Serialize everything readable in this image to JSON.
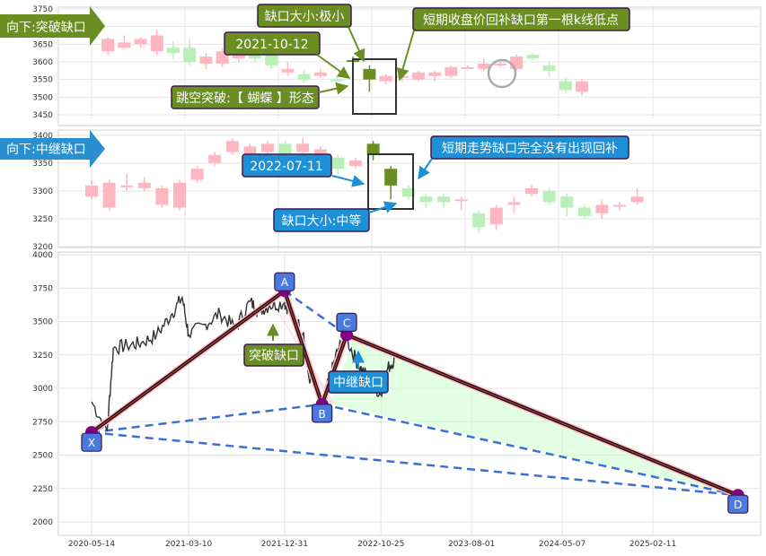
{
  "panel1": {
    "tag": "向下:突破缺口",
    "yticks": [
      "3750",
      "3700",
      "3650",
      "3600",
      "3550",
      "3500",
      "3450"
    ],
    "notes": {
      "gap_size": "缺口大小:极小",
      "date": "2021-10-12",
      "pattern": "跳空突破:【 蝴蝶 】形态",
      "fill_rule": "短期收盘价回补缺口第一根k线低点"
    }
  },
  "panel2": {
    "tag": "向下:中继缺口",
    "yticks": [
      "3400",
      "3350",
      "3300",
      "3250",
      "3200"
    ],
    "notes": {
      "date": "2022-07-11",
      "no_fill": "短期走势缺口完全没有出现回补",
      "gap_size": "缺口大小:中等"
    }
  },
  "panel3": {
    "yticks": [
      "4000",
      "3750",
      "3500",
      "3250",
      "3000",
      "2750",
      "2500",
      "2250",
      "2000"
    ],
    "xticks": [
      "2020-05-14",
      "2021-03-10",
      "2021-12-31",
      "2022-10-25",
      "2023-08-01",
      "2024-05-07",
      "2025-02-11"
    ],
    "points": {
      "X": "X",
      "A": "A",
      "B": "B",
      "C": "C",
      "D": "D"
    },
    "gap1_label": "突破缺口",
    "gap2_label": "中继缺口"
  },
  "colors": {
    "up": "#ffb6c1",
    "down": "#b8f0b8",
    "highlight_candle": "#6b8e23",
    "green_box": "#6b8e23",
    "blue_box": "#1e90d8",
    "price_line": "#333333",
    "dashed": "#3b6fd8",
    "pattern_fill": "#ccffcc"
  },
  "chart_data": [
    {
      "type": "candlestick",
      "title": "向下:突破缺口",
      "ylim": [
        3450,
        3750
      ],
      "grid": true,
      "gap": {
        "date": "2021-10-12",
        "size": "极小",
        "pattern": "蝴蝶"
      },
      "candles": [
        {
          "o": 3690,
          "c": 3670,
          "h": 3700,
          "l": 3660
        },
        {
          "o": 3630,
          "c": 3665,
          "h": 3670,
          "l": 3620
        },
        {
          "o": 3640,
          "c": 3655,
          "h": 3675,
          "l": 3635
        },
        {
          "o": 3650,
          "c": 3665,
          "h": 3670,
          "l": 3640
        },
        {
          "o": 3630,
          "c": 3675,
          "h": 3690,
          "l": 3620
        },
        {
          "o": 3640,
          "c": 3625,
          "h": 3660,
          "l": 3610
        },
        {
          "o": 3640,
          "c": 3600,
          "h": 3665,
          "l": 3590
        },
        {
          "o": 3595,
          "c": 3615,
          "h": 3625,
          "l": 3580
        },
        {
          "o": 3595,
          "c": 3630,
          "h": 3640,
          "l": 3585
        },
        {
          "o": 3610,
          "c": 3640,
          "h": 3650,
          "l": 3600
        },
        {
          "o": 3645,
          "c": 3610,
          "h": 3660,
          "l": 3600
        },
        {
          "o": 3620,
          "c": 3590,
          "h": 3630,
          "l": 3580
        },
        {
          "o": 3570,
          "c": 3580,
          "h": 3600,
          "l": 3560
        },
        {
          "o": 3565,
          "c": 3550,
          "h": 3575,
          "l": 3540
        },
        {
          "o": 3560,
          "c": 3570,
          "h": 3580,
          "l": 3555
        },
        {
          "o": 3550,
          "c": 3545,
          "h": 3560,
          "l": 3535
        },
        {
          "o": 3600,
          "c": 3605,
          "h": 3615,
          "l": 3590,
          "hl": true
        },
        {
          "o": 3580,
          "c": 3550,
          "h": 3590,
          "l": 3515,
          "hl": true
        },
        {
          "o": 3545,
          "c": 3560,
          "h": 3565,
          "l": 3535
        },
        {
          "o": 3555,
          "c": 3560,
          "h": 3565,
          "l": 3545
        },
        {
          "o": 3550,
          "c": 3570,
          "h": 3575,
          "l": 3545
        },
        {
          "o": 3560,
          "c": 3570,
          "h": 3575,
          "l": 3545
        },
        {
          "o": 3560,
          "c": 3585,
          "h": 3590,
          "l": 3555
        },
        {
          "o": 3585,
          "c": 3585,
          "h": 3590,
          "l": 3580
        },
        {
          "o": 3580,
          "c": 3595,
          "h": 3610,
          "l": 3575
        },
        {
          "o": 3590,
          "c": 3595,
          "h": 3600,
          "l": 3585
        },
        {
          "o": 3580,
          "c": 3615,
          "h": 3620,
          "l": 3575
        },
        {
          "o": 3620,
          "c": 3610,
          "h": 3625,
          "l": 3605
        },
        {
          "o": 3590,
          "c": 3575,
          "h": 3600,
          "l": 3560
        },
        {
          "o": 3545,
          "c": 3520,
          "h": 3555,
          "l": 3510
        },
        {
          "o": 3515,
          "c": 3545,
          "h": 3550,
          "l": 3505
        }
      ]
    },
    {
      "type": "candlestick",
      "title": "向下:中继缺口",
      "ylim": [
        3200,
        3400
      ],
      "grid": true,
      "gap": {
        "date": "2022-07-11",
        "size": "中等"
      },
      "candles": [
        {
          "o": 3290,
          "c": 3310,
          "h": 3320,
          "l": 3285
        },
        {
          "o": 3270,
          "c": 3315,
          "h": 3320,
          "l": 3265
        },
        {
          "o": 3310,
          "c": 3310,
          "h": 3330,
          "l": 3300
        },
        {
          "o": 3305,
          "c": 3315,
          "h": 3325,
          "l": 3300
        },
        {
          "o": 3275,
          "c": 3305,
          "h": 3310,
          "l": 3270
        },
        {
          "o": 3270,
          "c": 3315,
          "h": 3320,
          "l": 3265
        },
        {
          "o": 3320,
          "c": 3340,
          "h": 3345,
          "l": 3315
        },
        {
          "o": 3350,
          "c": 3365,
          "h": 3370,
          "l": 3345
        },
        {
          "o": 3370,
          "c": 3390,
          "h": 3395,
          "l": 3365
        },
        {
          "o": 3360,
          "c": 3380,
          "h": 3385,
          "l": 3355
        },
        {
          "o": 3370,
          "c": 3385,
          "h": 3390,
          "l": 3365
        },
        {
          "o": 3385,
          "c": 3360,
          "h": 3390,
          "l": 3355
        },
        {
          "o": 3370,
          "c": 3385,
          "h": 3395,
          "l": 3365
        },
        {
          "o": 3360,
          "c": 3375,
          "h": 3380,
          "l": 3355
        },
        {
          "o": 3360,
          "c": 3340,
          "h": 3365,
          "l": 3330
        },
        {
          "o": 3345,
          "c": 3355,
          "h": 3360,
          "l": 3340
        },
        {
          "o": 3385,
          "c": 3365,
          "h": 3390,
          "l": 3355,
          "hl": true
        },
        {
          "o": 3340,
          "c": 3310,
          "h": 3345,
          "l": 3285,
          "hl": true
        },
        {
          "o": 3305,
          "c": 3290,
          "h": 3310,
          "l": 3285
        },
        {
          "o": 3290,
          "c": 3280,
          "h": 3295,
          "l": 3270
        },
        {
          "o": 3290,
          "c": 3280,
          "h": 3295,
          "l": 3270
        },
        {
          "o": 3285,
          "c": 3285,
          "h": 3290,
          "l": 3265
        },
        {
          "o": 3260,
          "c": 3235,
          "h": 3265,
          "l": 3225
        },
        {
          "o": 3240,
          "c": 3270,
          "h": 3275,
          "l": 3230
        },
        {
          "o": 3275,
          "c": 3280,
          "h": 3290,
          "l": 3260
        },
        {
          "o": 3295,
          "c": 3305,
          "h": 3310,
          "l": 3290
        },
        {
          "o": 3300,
          "c": 3280,
          "h": 3305,
          "l": 3275
        },
        {
          "o": 3290,
          "c": 3270,
          "h": 3295,
          "l": 3255
        },
        {
          "o": 3270,
          "c": 3255,
          "h": 3275,
          "l": 3250
        },
        {
          "o": 3260,
          "c": 3275,
          "h": 3285,
          "l": 3250
        },
        {
          "o": 3275,
          "c": 3275,
          "h": 3280,
          "l": 3265
        },
        {
          "o": 3280,
          "c": 3290,
          "h": 3305,
          "l": 3275
        }
      ]
    },
    {
      "type": "line",
      "ylim": [
        1950,
        4000
      ],
      "grid": true,
      "x_ticks": [
        "2020-05-14",
        "2021-03-10",
        "2021-12-31",
        "2022-10-25",
        "2023-08-01",
        "2024-05-07",
        "2025-02-11"
      ],
      "series": [
        {
          "x": [
            "2020-05-14",
            "2020-07-01",
            "2020-07-20",
            "2020-09-01",
            "2020-10-15",
            "2020-12-01",
            "2021-01-15",
            "2021-02-18",
            "2021-03-10",
            "2021-05-01",
            "2021-06-15",
            "2021-08-01",
            "2021-09-15",
            "2021-10-12",
            "2021-11-15",
            "2021-12-31",
            "2022-01-20",
            "2022-02-28",
            "2022-03-15",
            "2022-04-26",
            "2022-05-20",
            "2022-06-15",
            "2022-07-11",
            "2022-08-15",
            "2022-09-15",
            "2022-10-25",
            "2022-11-15",
            "2022-12-10"
          ],
          "y": [
            2900,
            2680,
            3300,
            3320,
            3340,
            3400,
            3550,
            3680,
            3400,
            3480,
            3560,
            3450,
            3650,
            3580,
            3620,
            3640,
            3560,
            3420,
            3100,
            2880,
            3080,
            3300,
            3370,
            3180,
            3080,
            2950,
            3150,
            3230
          ]
        }
      ],
      "pattern_points": [
        {
          "label": "X",
          "x": "2020-05-14",
          "y": 2670
        },
        {
          "label": "A",
          "x": "2021-12-31",
          "y": 3730
        },
        {
          "label": "B",
          "x": "2022-04-26",
          "y": 2880
        },
        {
          "label": "C",
          "x": "2022-07-11",
          "y": 3400
        },
        {
          "label": "D",
          "x": "2025-11-01",
          "y": 2200
        }
      ]
    }
  ]
}
